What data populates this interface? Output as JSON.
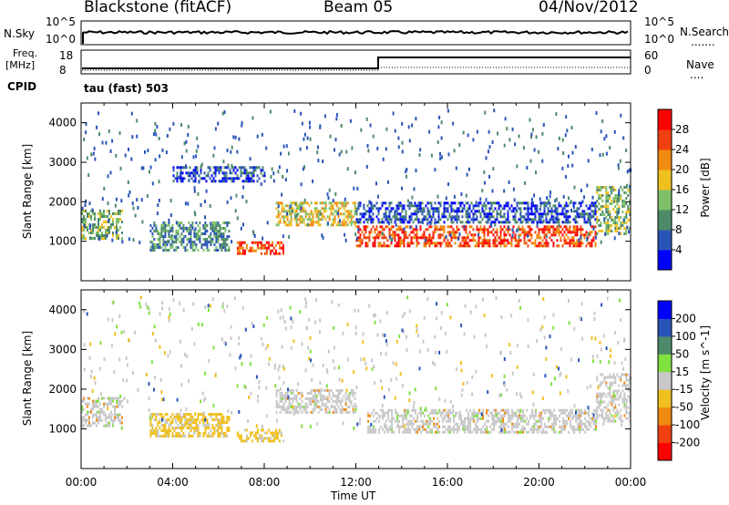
{
  "header": {
    "station": "Blackstone (fitACF)",
    "beam": "Beam 05",
    "date": "04/Nov/2012"
  },
  "top_panel": {
    "left_label": "N.Sky",
    "right_label": "N.Search",
    "left_ticks": [
      "10^5",
      "10^0"
    ],
    "right_ticks": [
      "10^5",
      "10^0"
    ]
  },
  "freq_panel": {
    "left_label_line1": "Freq.",
    "left_label_line2": "[MHz]",
    "right_label": "Nave",
    "left_ticks": [
      "18",
      "8"
    ],
    "right_ticks": [
      "60",
      "0"
    ],
    "cpid_label": "CPID",
    "cpid_value": "tau (fast) 503"
  },
  "colors": {
    "power_scale": [
      "#0000ff",
      "#2a55b8",
      "#4e8a6a",
      "#7ec06a",
      "#f0c020",
      "#f08a10",
      "#f04010",
      "#ff0000"
    ],
    "velocity_scale": [
      "#0000ff",
      "#2a55b8",
      "#4e8a6a",
      "#80e040",
      "#c8c8c8",
      "#f0c020",
      "#f08a10",
      "#f04010",
      "#ff0000"
    ],
    "ground_scatter": "#c8c8c8"
  },
  "chart_data": [
    {
      "type": "heatmap",
      "title": "Power",
      "ylabel": "Slant Range [km]",
      "xlabel": "Time UT",
      "ylim": [
        0,
        4500
      ],
      "xlim": [
        "00:00",
        "24:00"
      ],
      "y_ticks": [
        "1000",
        "2000",
        "3000",
        "4000"
      ],
      "x_ticks": [
        "00:00",
        "04:00",
        "08:00",
        "12:00",
        "16:00",
        "20:00",
        "00:00"
      ],
      "colorbar_label": "Power [dB]",
      "colorbar_ticks": [
        "28",
        "24",
        "20",
        "16",
        "12",
        "8",
        "4"
      ],
      "colorbar_range": [
        0,
        32
      ],
      "features": [
        {
          "start_h": 0.0,
          "end_h": 1.8,
          "range_km": [
            1100,
            1800
          ],
          "power_db": 14
        },
        {
          "start_h": 3.0,
          "end_h": 6.5,
          "range_km": [
            800,
            1500
          ],
          "power_db": 10
        },
        {
          "start_h": 6.8,
          "end_h": 8.8,
          "range_km": [
            700,
            1000
          ],
          "power_db": 26
        },
        {
          "start_h": 8.5,
          "end_h": 12.0,
          "range_km": [
            1400,
            2000
          ],
          "power_db": 18
        },
        {
          "start_h": 12.0,
          "end_h": 22.5,
          "range_km": [
            900,
            1400
          ],
          "power_db": 26
        },
        {
          "start_h": 12.0,
          "end_h": 22.5,
          "range_km": [
            1500,
            2000
          ],
          "power_db": 8
        },
        {
          "start_h": 22.5,
          "end_h": 24.0,
          "range_km": [
            1200,
            2400
          ],
          "power_db": 16
        },
        {
          "start_h": 4.0,
          "end_h": 8.0,
          "range_km": [
            2500,
            2900
          ],
          "power_db": 8
        }
      ]
    },
    {
      "type": "heatmap",
      "title": "Velocity",
      "ylabel": "Slant Range [km]",
      "xlabel": "Time UT",
      "ylim": [
        0,
        4500
      ],
      "xlim": [
        "00:00",
        "24:00"
      ],
      "y_ticks": [
        "1000",
        "2000",
        "3000",
        "4000"
      ],
      "x_ticks": [
        "00:00",
        "04:00",
        "08:00",
        "12:00",
        "16:00",
        "20:00",
        "00:00"
      ],
      "colorbar_label": "Velocity [m s^-1]",
      "colorbar_ticks": [
        "200",
        "100",
        "50",
        "15",
        "-15",
        "-50",
        "-100",
        "-200"
      ],
      "features": [
        {
          "start_h": 0.0,
          "end_h": 1.8,
          "range_km": [
            1100,
            1800
          ],
          "velocity": 0
        },
        {
          "start_h": 3.0,
          "end_h": 6.5,
          "range_km": [
            800,
            1400
          ],
          "velocity": -40
        },
        {
          "start_h": 6.8,
          "end_h": 8.8,
          "range_km": [
            700,
            1000
          ],
          "velocity": -40
        },
        {
          "start_h": 8.5,
          "end_h": 12.0,
          "range_km": [
            1400,
            2000
          ],
          "velocity": 0
        },
        {
          "start_h": 12.5,
          "end_h": 22.5,
          "range_km": [
            900,
            1500
          ],
          "velocity": 0
        },
        {
          "start_h": 22.5,
          "end_h": 24.0,
          "range_km": [
            1200,
            2400
          ],
          "velocity": 0
        }
      ]
    }
  ]
}
